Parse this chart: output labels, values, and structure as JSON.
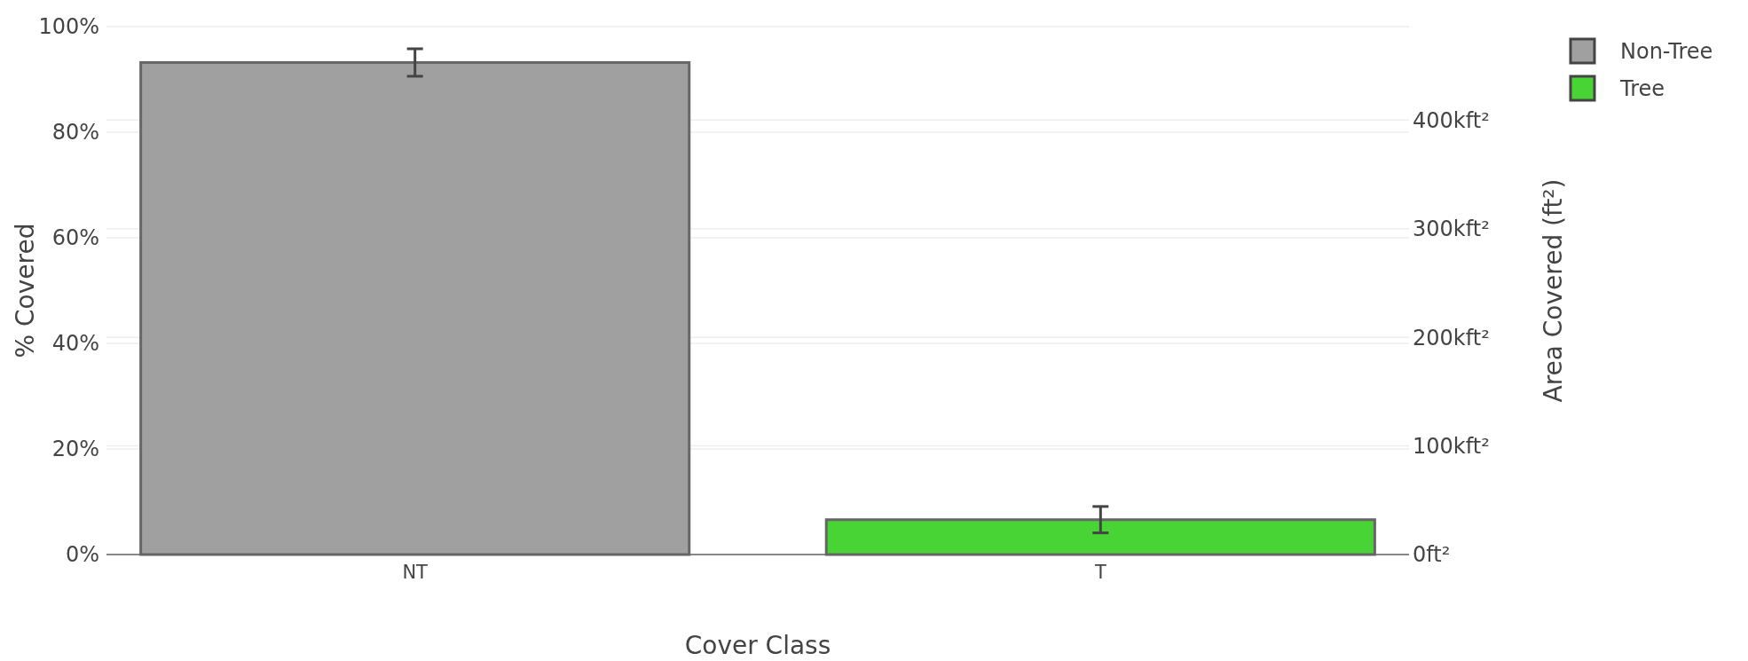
{
  "chart_data": {
    "type": "bar",
    "categories": [
      "NT",
      "T"
    ],
    "xlabel": "Cover Class",
    "ylabel": "% Covered",
    "y2label": "Area Covered (ft²)",
    "series": [
      {
        "name": "Non-Tree",
        "color": "#a0a0a0",
        "values": [
          93.2,
          null
        ],
        "errors": [
          2.6,
          null
        ]
      },
      {
        "name": "Tree",
        "color": "#48d435",
        "values": [
          null,
          6.6
        ],
        "errors": [
          null,
          2.5
        ]
      }
    ],
    "ylim": [
      0,
      100
    ],
    "yticks": [
      {
        "value": 0,
        "label": "0%"
      },
      {
        "value": 20,
        "label": "20%"
      },
      {
        "value": 40,
        "label": "40%"
      },
      {
        "value": 60,
        "label": "60%"
      },
      {
        "value": 80,
        "label": "80%"
      },
      {
        "value": 100,
        "label": "100%"
      }
    ],
    "y2lim": [
      0,
      486
    ],
    "y2ticks": [
      {
        "value": 0,
        "label": "0ft²"
      },
      {
        "value": 100,
        "label": "100kft²"
      },
      {
        "value": 200,
        "label": "200kft²"
      },
      {
        "value": 300,
        "label": "300kft²"
      },
      {
        "value": 400,
        "label": "400kft²"
      }
    ],
    "grid": true,
    "legend": "top right"
  }
}
